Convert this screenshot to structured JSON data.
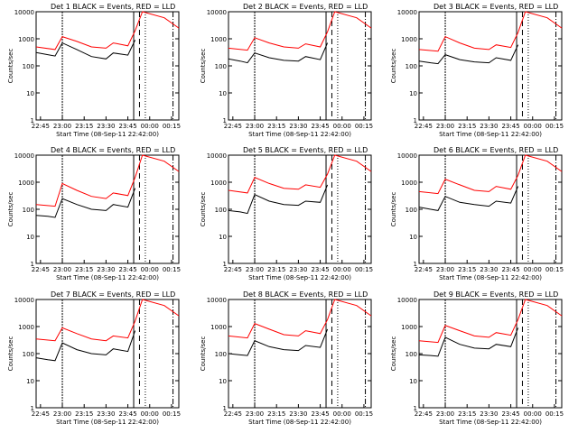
{
  "figure": {
    "start_time_label": "Start Time (08-Sep-11 22:42:00)",
    "ylabel": "Counts/sec",
    "title_suffix": "BLACK = Events, RED = LLD",
    "colors": {
      "events": "#000000",
      "lld": "#ff0000",
      "background": "#ffffff"
    }
  },
  "chart_data": [
    {
      "type": "line",
      "title": "Det 1",
      "x_ticks": [
        "22:45",
        "23:00",
        "23:15",
        "23:30",
        "23:45",
        "00:00",
        "00:15"
      ],
      "y_ticks": [
        "1",
        "10",
        "100",
        "1000",
        "10000"
      ],
      "y_scale": "log",
      "ylim": [
        1,
        10000
      ],
      "xlim": [
        "22:42",
        "00:20"
      ],
      "series": [
        {
          "name": "Events",
          "x": [
            "22:42",
            "22:50",
            "22:55",
            "23:00",
            "23:10",
            "23:20",
            "23:30",
            "23:35",
            "23:45",
            "23:50"
          ],
          "values": [
            310,
            260,
            230,
            700,
            400,
            220,
            180,
            300,
            250,
            900
          ]
        },
        {
          "name": "LLD",
          "x": [
            "22:42",
            "22:55",
            "23:00",
            "23:10",
            "23:20",
            "23:30",
            "23:35",
            "23:45",
            "23:50",
            "23:55",
            "00:10",
            "00:20"
          ],
          "values": [
            500,
            400,
            1200,
            800,
            500,
            450,
            700,
            550,
            2000,
            10000,
            6000,
            2500
          ]
        }
      ]
    },
    {
      "type": "line",
      "title": "Det 2",
      "x_ticks": [
        "22:45",
        "23:00",
        "23:15",
        "23:30",
        "23:45",
        "00:00",
        "00:15"
      ],
      "y_ticks": [
        "1",
        "10",
        "100",
        "1000",
        "10000"
      ],
      "y_scale": "log",
      "ylim": [
        1,
        10000
      ],
      "xlim": [
        "22:42",
        "00:20"
      ],
      "series": [
        {
          "name": "Events",
          "x": [
            "22:42",
            "22:50",
            "22:55",
            "23:00",
            "23:10",
            "23:20",
            "23:30",
            "23:35",
            "23:45",
            "23:50"
          ],
          "values": [
            180,
            150,
            130,
            300,
            200,
            160,
            150,
            220,
            170,
            700
          ]
        },
        {
          "name": "LLD",
          "x": [
            "22:42",
            "22:55",
            "23:00",
            "23:10",
            "23:20",
            "23:30",
            "23:35",
            "23:45",
            "23:50",
            "23:55",
            "00:10",
            "00:20"
          ],
          "values": [
            450,
            380,
            1100,
            700,
            500,
            450,
            650,
            500,
            1800,
            10000,
            6000,
            2500
          ]
        }
      ]
    },
    {
      "type": "line",
      "title": "Det 3",
      "x_ticks": [
        "22:45",
        "23:00",
        "23:15",
        "23:30",
        "23:45",
        "00:00",
        "00:15"
      ],
      "y_ticks": [
        "1",
        "10",
        "100",
        "1000",
        "10000"
      ],
      "y_scale": "log",
      "ylim": [
        1,
        10000
      ],
      "xlim": [
        "22:42",
        "00:20"
      ],
      "series": [
        {
          "name": "Events",
          "x": [
            "22:42",
            "22:50",
            "22:55",
            "23:00",
            "23:10",
            "23:20",
            "23:30",
            "23:35",
            "23:45",
            "23:50"
          ],
          "values": [
            150,
            130,
            120,
            260,
            170,
            140,
            130,
            200,
            160,
            600
          ]
        },
        {
          "name": "LLD",
          "x": [
            "22:42",
            "22:55",
            "23:00",
            "23:10",
            "23:20",
            "23:30",
            "23:35",
            "23:45",
            "23:50",
            "23:55",
            "00:10",
            "00:20"
          ],
          "values": [
            400,
            350,
            1200,
            700,
            450,
            400,
            600,
            480,
            1700,
            10000,
            6000,
            2500
          ]
        }
      ]
    },
    {
      "type": "line",
      "title": "Det 4",
      "x_ticks": [
        "22:45",
        "23:00",
        "23:15",
        "23:30",
        "23:45",
        "00:00",
        "00:15"
      ],
      "y_ticks": [
        "1",
        "10",
        "100",
        "1000",
        "10000"
      ],
      "y_scale": "log",
      "ylim": [
        1,
        10000
      ],
      "xlim": [
        "22:42",
        "00:20"
      ],
      "series": [
        {
          "name": "Events",
          "x": [
            "22:42",
            "22:50",
            "22:55",
            "23:00",
            "23:10",
            "23:20",
            "23:30",
            "23:35",
            "23:45",
            "23:50"
          ],
          "values": [
            60,
            55,
            50,
            250,
            150,
            100,
            90,
            150,
            120,
            600
          ]
        },
        {
          "name": "LLD",
          "x": [
            "22:42",
            "22:55",
            "23:00",
            "23:10",
            "23:20",
            "23:30",
            "23:35",
            "23:45",
            "23:50",
            "23:55",
            "00:10",
            "00:20"
          ],
          "values": [
            150,
            130,
            900,
            500,
            300,
            250,
            400,
            320,
            1500,
            10000,
            6000,
            2500
          ]
        }
      ]
    },
    {
      "type": "line",
      "title": "Det 5",
      "x_ticks": [
        "22:45",
        "23:00",
        "23:15",
        "23:30",
        "23:45",
        "00:00",
        "00:15"
      ],
      "y_ticks": [
        "1",
        "10",
        "100",
        "1000",
        "10000"
      ],
      "y_scale": "log",
      "ylim": [
        1,
        10000
      ],
      "xlim": [
        "22:42",
        "00:20"
      ],
      "series": [
        {
          "name": "Events",
          "x": [
            "22:42",
            "22:50",
            "22:55",
            "23:00",
            "23:10",
            "23:20",
            "23:30",
            "23:35",
            "23:45",
            "23:50"
          ],
          "values": [
            90,
            80,
            70,
            350,
            200,
            150,
            140,
            200,
            180,
            800
          ]
        },
        {
          "name": "LLD",
          "x": [
            "22:42",
            "22:55",
            "23:00",
            "23:10",
            "23:20",
            "23:30",
            "23:35",
            "23:45",
            "23:50",
            "23:55",
            "00:10",
            "00:20"
          ],
          "values": [
            500,
            400,
            1500,
            900,
            600,
            550,
            800,
            650,
            2000,
            10000,
            6000,
            2500
          ]
        }
      ]
    },
    {
      "type": "line",
      "title": "Det 6",
      "x_ticks": [
        "22:45",
        "23:00",
        "23:15",
        "23:30",
        "23:45",
        "00:00",
        "00:15"
      ],
      "y_ticks": [
        "1",
        "10",
        "100",
        "1000",
        "10000"
      ],
      "y_scale": "log",
      "ylim": [
        1,
        10000
      ],
      "xlim": [
        "22:42",
        "00:20"
      ],
      "series": [
        {
          "name": "Events",
          "x": [
            "22:42",
            "22:50",
            "22:55",
            "23:00",
            "23:10",
            "23:20",
            "23:30",
            "23:35",
            "23:45",
            "23:50"
          ],
          "values": [
            120,
            100,
            90,
            300,
            180,
            150,
            130,
            200,
            170,
            700
          ]
        },
        {
          "name": "LLD",
          "x": [
            "22:42",
            "22:55",
            "23:00",
            "23:10",
            "23:20",
            "23:30",
            "23:35",
            "23:45",
            "23:50",
            "23:55",
            "00:10",
            "00:20"
          ],
          "values": [
            450,
            380,
            1300,
            800,
            500,
            450,
            700,
            550,
            1800,
            10000,
            6000,
            2500
          ]
        }
      ]
    },
    {
      "type": "line",
      "title": "Det 7",
      "x_ticks": [
        "22:45",
        "23:00",
        "23:15",
        "23:30",
        "23:45",
        "00:00",
        "00:15"
      ],
      "y_ticks": [
        "1",
        "10",
        "100",
        "1000",
        "10000"
      ],
      "y_scale": "log",
      "ylim": [
        1,
        10000
      ],
      "xlim": [
        "22:42",
        "00:20"
      ],
      "series": [
        {
          "name": "Events",
          "x": [
            "22:42",
            "22:50",
            "22:55",
            "23:00",
            "23:10",
            "23:20",
            "23:30",
            "23:35",
            "23:45",
            "23:50"
          ],
          "values": [
            70,
            60,
            55,
            250,
            140,
            100,
            90,
            150,
            120,
            700
          ]
        },
        {
          "name": "LLD",
          "x": [
            "22:42",
            "22:55",
            "23:00",
            "23:10",
            "23:20",
            "23:30",
            "23:35",
            "23:45",
            "23:50",
            "23:55",
            "00:10",
            "00:20"
          ],
          "values": [
            350,
            300,
            900,
            550,
            350,
            300,
            450,
            380,
            1600,
            10000,
            6000,
            2500
          ]
        }
      ]
    },
    {
      "type": "line",
      "title": "Det 8",
      "x_ticks": [
        "22:45",
        "23:00",
        "23:15",
        "23:30",
        "23:45",
        "00:00",
        "00:15"
      ],
      "y_ticks": [
        "1",
        "10",
        "100",
        "1000",
        "10000"
      ],
      "y_scale": "log",
      "ylim": [
        1,
        10000
      ],
      "xlim": [
        "22:42",
        "00:20"
      ],
      "series": [
        {
          "name": "Events",
          "x": [
            "22:42",
            "22:50",
            "22:55",
            "23:00",
            "23:10",
            "23:20",
            "23:30",
            "23:35",
            "23:45",
            "23:50"
          ],
          "values": [
            100,
            90,
            85,
            300,
            180,
            140,
            130,
            200,
            170,
            800
          ]
        },
        {
          "name": "LLD",
          "x": [
            "22:42",
            "22:55",
            "23:00",
            "23:10",
            "23:20",
            "23:30",
            "23:35",
            "23:45",
            "23:50",
            "23:55",
            "00:10",
            "00:20"
          ],
          "values": [
            450,
            380,
            1300,
            800,
            500,
            450,
            700,
            550,
            1800,
            10000,
            6000,
            2500
          ]
        }
      ]
    },
    {
      "type": "line",
      "title": "Det 9",
      "x_ticks": [
        "22:45",
        "23:00",
        "23:15",
        "23:30",
        "23:45",
        "00:00",
        "00:15"
      ],
      "y_ticks": [
        "1",
        "10",
        "100",
        "1000",
        "10000"
      ],
      "y_scale": "log",
      "ylim": [
        1,
        10000
      ],
      "xlim": [
        "22:42",
        "00:20"
      ],
      "series": [
        {
          "name": "Events",
          "x": [
            "22:42",
            "22:50",
            "22:55",
            "23:00",
            "23:10",
            "23:20",
            "23:30",
            "23:35",
            "23:45",
            "23:50"
          ],
          "values": [
            90,
            85,
            80,
            400,
            220,
            160,
            150,
            220,
            180,
            900
          ]
        },
        {
          "name": "LLD",
          "x": [
            "22:42",
            "22:55",
            "23:00",
            "23:10",
            "23:20",
            "23:30",
            "23:35",
            "23:45",
            "23:50",
            "23:55",
            "00:10",
            "00:20"
          ],
          "values": [
            300,
            260,
            1100,
            700,
            450,
            400,
            600,
            480,
            1800,
            10000,
            6000,
            2500
          ]
        }
      ]
    }
  ]
}
